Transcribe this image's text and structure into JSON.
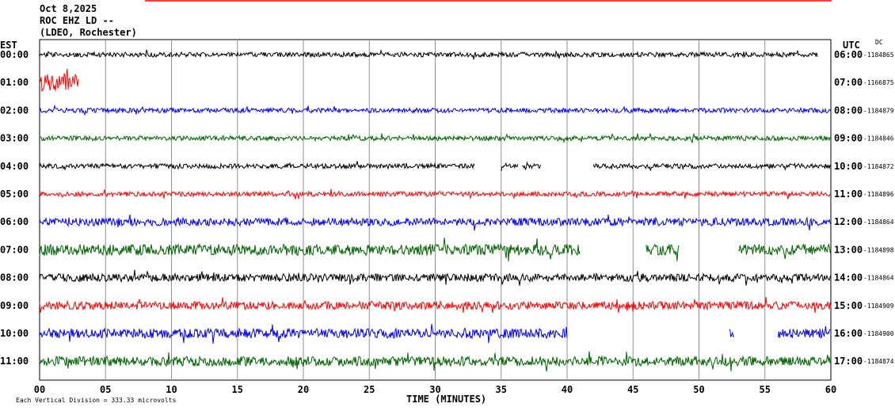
{
  "header": {
    "line1": "Oct 8,2025",
    "line2": "ROC EHZ LD --",
    "line3": "(LDEO, Rochester)"
  },
  "left_axis_label": "EST",
  "right_axis_label": "UTC",
  "dc_label": "DC",
  "footer_note": "Each Vertical Division =  333.33 microvolts",
  "chart_data": {
    "type": "line",
    "xlabel": "TIME (MINUTES)",
    "xlim": [
      0,
      60
    ],
    "x_ticks": [
      "00",
      "05",
      "10",
      "15",
      "20",
      "25",
      "30",
      "35",
      "40",
      "45",
      "50",
      "55",
      "60"
    ],
    "colors": [
      "#000000",
      "#ff0000",
      "#0000ff",
      "#006400"
    ],
    "rows": [
      {
        "est": "00:00",
        "utc": "06:00",
        "dc": "-1184865",
        "color": "#000000",
        "segments": [
          [
            0,
            59
          ]
        ],
        "amp": 3
      },
      {
        "est": "01:00",
        "utc": "07:00",
        "dc": "-1166875",
        "color": "#ff0000",
        "segments": [
          [
            0,
            3
          ]
        ],
        "amp": 11
      },
      {
        "est": "02:00",
        "utc": "08:00",
        "dc": "-1184879",
        "color": "#0000ff",
        "segments": [
          [
            0,
            60
          ]
        ],
        "amp": 3
      },
      {
        "est": "03:00",
        "utc": "09:00",
        "dc": "-1184846",
        "color": "#006400",
        "segments": [
          [
            0,
            60
          ]
        ],
        "amp": 3
      },
      {
        "est": "04:00",
        "utc": "10:00",
        "dc": "-1184872",
        "color": "#000000",
        "segments": [
          [
            0,
            33
          ],
          [
            35,
            36.3
          ],
          [
            36.6,
            38
          ],
          [
            42,
            60
          ]
        ],
        "amp": 3
      },
      {
        "est": "05:00",
        "utc": "11:00",
        "dc": "-1184896",
        "color": "#ff0000",
        "segments": [
          [
            0,
            60
          ]
        ],
        "amp": 3
      },
      {
        "est": "06:00",
        "utc": "12:00",
        "dc": "-1184864",
        "color": "#0000ff",
        "segments": [
          [
            0,
            60
          ]
        ],
        "amp": 5
      },
      {
        "est": "07:00",
        "utc": "13:00",
        "dc": "-1184898",
        "color": "#006400",
        "segments": [
          [
            0,
            41
          ],
          [
            46,
            48.5
          ],
          [
            53,
            60
          ]
        ],
        "amp": 7
      },
      {
        "est": "08:00",
        "utc": "14:00",
        "dc": "-1184864",
        "color": "#000000",
        "segments": [
          [
            0,
            60
          ]
        ],
        "amp": 5
      },
      {
        "est": "09:00",
        "utc": "15:00",
        "dc": "-1184909",
        "color": "#ff0000",
        "segments": [
          [
            0,
            60
          ]
        ],
        "amp": 5
      },
      {
        "est": "10:00",
        "utc": "16:00",
        "dc": "-1184900",
        "color": "#0000ff",
        "segments": [
          [
            0,
            40
          ],
          [
            52.3,
            52.7
          ],
          [
            56,
            60
          ]
        ],
        "amp": 6
      },
      {
        "est": "11:00",
        "utc": "17:00",
        "dc": "-1184874",
        "color": "#006400",
        "segments": [
          [
            0,
            60
          ]
        ],
        "amp": 6
      }
    ]
  }
}
